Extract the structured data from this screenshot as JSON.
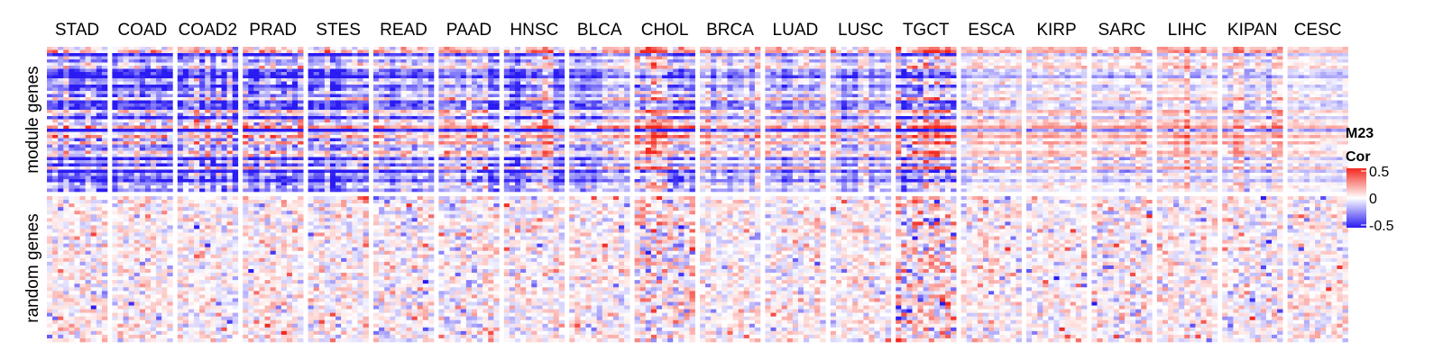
{
  "chart_data": {
    "type": "heatmap",
    "columns": [
      "STAD",
      "COAD",
      "COAD2",
      "PRAD",
      "STES",
      "READ",
      "PAAD",
      "HNSC",
      "BLCA",
      "CHOL",
      "BRCA",
      "LUAD",
      "LUSC",
      "TGCT",
      "ESCA",
      "KIRP",
      "SARC",
      "LIHC",
      "KIPAN",
      "CESC"
    ],
    "row_groups": [
      "module genes",
      "random genes"
    ],
    "legend": {
      "title_line1": "M23",
      "title_line2": "Cor",
      "tick_high": "0.5",
      "tick_mid": "0",
      "tick_low": "-0.5",
      "range": [
        -0.5,
        0.5
      ]
    },
    "colors": {
      "low": "#2a1bf2",
      "mid": "#ffffff",
      "high": "#f2281e"
    },
    "module_mean_cor": [
      -0.12,
      -0.14,
      -0.15,
      -0.05,
      -0.13,
      -0.09,
      -0.06,
      -0.1,
      -0.06,
      0.02,
      -0.04,
      -0.04,
      -0.03,
      0.0,
      0.03,
      0.04,
      0.05,
      0.06,
      0.03,
      0.03
    ],
    "module_spread": [
      0.3,
      0.3,
      0.3,
      0.33,
      0.3,
      0.25,
      0.25,
      0.28,
      0.22,
      0.3,
      0.2,
      0.22,
      0.2,
      0.35,
      0.15,
      0.15,
      0.16,
      0.15,
      0.17,
      0.12
    ],
    "random_mean_cor": [
      0.02,
      0.02,
      0.02,
      0.02,
      0.02,
      0.01,
      0.01,
      0.02,
      0.02,
      0.02,
      0.01,
      0.02,
      0.02,
      0.03,
      0.02,
      0.01,
      0.01,
      0.02,
      0.0,
      0.02
    ],
    "random_spread": [
      0.1,
      0.1,
      0.1,
      0.1,
      0.1,
      0.12,
      0.12,
      0.1,
      0.1,
      0.15,
      0.09,
      0.1,
      0.09,
      0.2,
      0.1,
      0.09,
      0.12,
      0.1,
      0.1,
      0.1
    ]
  }
}
